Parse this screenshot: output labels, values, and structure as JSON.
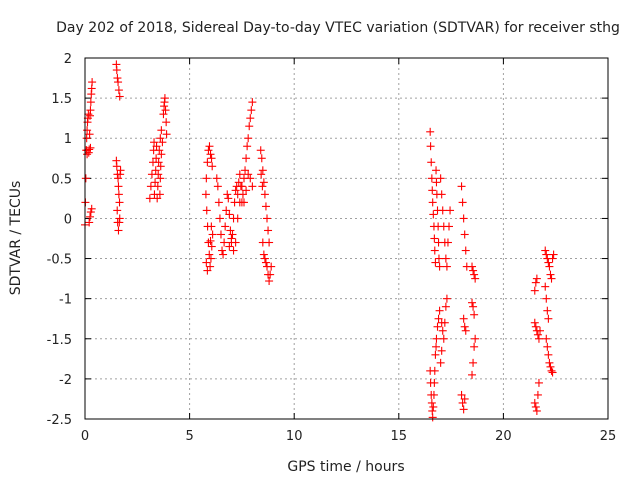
{
  "chart_data": {
    "type": "scatter",
    "title": "Day 202 of 2018, Sidereal Day-to-day VTEC variation (SDTVAR) for receiver sthg",
    "xlabel": "GPS time / hours",
    "ylabel": "SDTVAR / TECUs",
    "xlim": [
      0,
      25
    ],
    "ylim": [
      -2.5,
      2
    ],
    "xticks": [
      0,
      5,
      10,
      15,
      20,
      25
    ],
    "xtick_labels": [
      "0",
      "5",
      "10",
      "15",
      "20",
      "25"
    ],
    "yticks": [
      2,
      1.5,
      1,
      0.5,
      0,
      -0.5,
      -1,
      -1.5,
      -2,
      -2.5
    ],
    "ytick_labels": [
      "2",
      "1.5",
      "1",
      "0.5",
      "0",
      "-0.5",
      "-1",
      "-1.5",
      "-2",
      "-2.5"
    ],
    "grid": true,
    "marker": "+",
    "color": "#ff0000",
    "series": [
      {
        "name": "SDTVAR",
        "points": [
          [
            0.0,
            -0.08
          ],
          [
            0.02,
            0.2
          ],
          [
            0.04,
            0.5
          ],
          [
            0.06,
            0.85
          ],
          [
            0.08,
            1.0
          ],
          [
            0.1,
            1.1
          ],
          [
            0.12,
            1.2
          ],
          [
            0.14,
            1.25
          ],
          [
            0.16,
            1.3
          ],
          [
            0.18,
            0.82
          ],
          [
            0.2,
            0.86
          ],
          [
            0.22,
            1.05
          ],
          [
            0.24,
            1.28
          ],
          [
            0.26,
            1.35
          ],
          [
            0.28,
            1.45
          ],
          [
            0.3,
            1.55
          ],
          [
            0.32,
            1.62
          ],
          [
            0.34,
            1.7
          ],
          [
            0.08,
            0.85
          ],
          [
            0.1,
            0.8
          ],
          [
            0.26,
            0.88
          ],
          [
            0.2,
            -0.05
          ],
          [
            0.24,
            0.02
          ],
          [
            0.28,
            0.08
          ],
          [
            0.32,
            0.12
          ],
          [
            1.5,
            1.92
          ],
          [
            1.52,
            1.85
          ],
          [
            1.55,
            1.75
          ],
          [
            1.58,
            1.7
          ],
          [
            1.62,
            1.6
          ],
          [
            1.66,
            1.52
          ],
          [
            1.5,
            0.72
          ],
          [
            1.52,
            0.65
          ],
          [
            1.55,
            0.55
          ],
          [
            1.58,
            0.5
          ],
          [
            1.6,
            0.4
          ],
          [
            1.62,
            0.3
          ],
          [
            1.65,
            0.2
          ],
          [
            1.68,
            0.55
          ],
          [
            1.7,
            0.6
          ],
          [
            1.54,
            0.1
          ],
          [
            1.56,
            -0.05
          ],
          [
            1.6,
            -0.15
          ],
          [
            1.64,
            -0.05
          ],
          [
            1.66,
            0.0
          ],
          [
            3.1,
            0.25
          ],
          [
            3.15,
            0.4
          ],
          [
            3.2,
            0.55
          ],
          [
            3.25,
            0.7
          ],
          [
            3.28,
            0.85
          ],
          [
            3.3,
            0.95
          ],
          [
            3.32,
            0.3
          ],
          [
            3.35,
            0.45
          ],
          [
            3.38,
            0.6
          ],
          [
            3.4,
            0.75
          ],
          [
            3.42,
            0.9
          ],
          [
            3.45,
            0.25
          ],
          [
            3.48,
            0.4
          ],
          [
            3.5,
            0.55
          ],
          [
            3.52,
            0.7
          ],
          [
            3.55,
            0.85
          ],
          [
            3.58,
            0.3
          ],
          [
            3.6,
            0.5
          ],
          [
            3.62,
            0.65
          ],
          [
            3.65,
            0.8
          ],
          [
            3.7,
            0.95
          ],
          [
            3.75,
            1.3
          ],
          [
            3.78,
            1.4
          ],
          [
            3.8,
            1.45
          ],
          [
            3.82,
            1.5
          ],
          [
            3.85,
            1.35
          ],
          [
            3.88,
            1.2
          ],
          [
            3.9,
            1.05
          ],
          [
            3.6,
            1.0
          ],
          [
            3.65,
            1.1
          ],
          [
            5.8,
            0.5
          ],
          [
            5.85,
            0.7
          ],
          [
            5.9,
            0.85
          ],
          [
            5.95,
            0.9
          ],
          [
            6.0,
            0.8
          ],
          [
            6.05,
            0.75
          ],
          [
            6.08,
            0.65
          ],
          [
            5.78,
            0.3
          ],
          [
            5.82,
            0.1
          ],
          [
            5.86,
            -0.1
          ],
          [
            5.9,
            -0.3
          ],
          [
            5.94,
            -0.45
          ],
          [
            5.98,
            -0.6
          ],
          [
            6.02,
            -0.5
          ],
          [
            6.06,
            -0.35
          ],
          [
            6.1,
            -0.2
          ],
          [
            5.8,
            -0.55
          ],
          [
            5.85,
            -0.65
          ],
          [
            6.0,
            -0.28
          ],
          [
            6.04,
            -0.1
          ],
          [
            6.3,
            0.5
          ],
          [
            6.35,
            0.4
          ],
          [
            6.4,
            0.2
          ],
          [
            6.45,
            0.0
          ],
          [
            6.5,
            -0.2
          ],
          [
            6.55,
            -0.4
          ],
          [
            6.6,
            -0.45
          ],
          [
            6.65,
            -0.3
          ],
          [
            6.7,
            -0.1
          ],
          [
            6.75,
            0.1
          ],
          [
            6.8,
            0.3
          ],
          [
            6.85,
            0.25
          ],
          [
            6.9,
            0.05
          ],
          [
            6.95,
            -0.15
          ],
          [
            7.0,
            -0.3
          ],
          [
            7.05,
            -0.2
          ],
          [
            7.1,
            0.0
          ],
          [
            7.15,
            0.2
          ],
          [
            7.2,
            0.35
          ],
          [
            7.25,
            0.4
          ],
          [
            7.3,
            0.3
          ],
          [
            7.35,
            0.45
          ],
          [
            7.4,
            0.55
          ],
          [
            7.45,
            0.4
          ],
          [
            7.5,
            0.2
          ],
          [
            7.55,
            0.3
          ],
          [
            7.6,
            0.5
          ],
          [
            7.65,
            0.6
          ],
          [
            7.7,
            0.75
          ],
          [
            7.75,
            0.9
          ],
          [
            7.8,
            1.0
          ],
          [
            7.85,
            1.15
          ],
          [
            7.9,
            1.25
          ],
          [
            7.95,
            1.35
          ],
          [
            8.0,
            1.45
          ],
          [
            6.9,
            -0.35
          ],
          [
            7.0,
            -0.25
          ],
          [
            7.1,
            -0.4
          ],
          [
            7.2,
            -0.3
          ],
          [
            7.3,
            0.0
          ],
          [
            7.4,
            0.2
          ],
          [
            7.5,
            0.4
          ],
          [
            7.6,
            0.2
          ],
          [
            7.7,
            0.35
          ],
          [
            7.8,
            0.55
          ],
          [
            7.9,
            0.5
          ],
          [
            8.0,
            0.4
          ],
          [
            8.4,
            0.85
          ],
          [
            8.45,
            0.75
          ],
          [
            8.5,
            0.6
          ],
          [
            8.55,
            0.45
          ],
          [
            8.6,
            0.3
          ],
          [
            8.65,
            0.15
          ],
          [
            8.7,
            0.0
          ],
          [
            8.75,
            -0.15
          ],
          [
            8.8,
            -0.3
          ],
          [
            8.5,
            -0.3
          ],
          [
            8.55,
            -0.45
          ],
          [
            8.6,
            -0.5
          ],
          [
            8.65,
            -0.55
          ],
          [
            8.7,
            -0.6
          ],
          [
            8.75,
            -0.7
          ],
          [
            8.8,
            -0.78
          ],
          [
            8.85,
            -0.7
          ],
          [
            8.9,
            -0.6
          ],
          [
            8.42,
            0.55
          ],
          [
            8.48,
            0.4
          ],
          [
            16.5,
            1.08
          ],
          [
            16.52,
            0.9
          ],
          [
            16.55,
            0.7
          ],
          [
            16.58,
            0.5
          ],
          [
            16.6,
            0.35
          ],
          [
            16.62,
            0.2
          ],
          [
            16.65,
            0.05
          ],
          [
            16.68,
            -0.1
          ],
          [
            16.7,
            -0.25
          ],
          [
            16.72,
            -0.4
          ],
          [
            16.75,
            -0.55
          ],
          [
            16.78,
            0.6
          ],
          [
            16.8,
            0.45
          ],
          [
            16.82,
            0.3
          ],
          [
            16.85,
            0.1
          ],
          [
            16.88,
            -0.1
          ],
          [
            16.9,
            -0.3
          ],
          [
            16.92,
            -0.5
          ],
          [
            16.95,
            -0.6
          ],
          [
            16.5,
            -1.9
          ],
          [
            16.52,
            -2.05
          ],
          [
            16.55,
            -2.2
          ],
          [
            16.58,
            -2.3
          ],
          [
            16.6,
            -2.4
          ],
          [
            16.62,
            -2.48
          ],
          [
            16.65,
            -2.35
          ],
          [
            16.68,
            -2.2
          ],
          [
            16.7,
            -2.05
          ],
          [
            16.72,
            -1.9
          ],
          [
            16.75,
            -1.7
          ],
          [
            16.78,
            -1.6
          ],
          [
            16.8,
            -1.5
          ],
          [
            16.85,
            -1.35
          ],
          [
            16.9,
            -1.25
          ],
          [
            16.95,
            -1.15
          ],
          [
            17.0,
            0.5
          ],
          [
            17.05,
            0.3
          ],
          [
            17.1,
            0.1
          ],
          [
            17.15,
            -0.1
          ],
          [
            17.2,
            -0.3
          ],
          [
            17.25,
            -0.5
          ],
          [
            17.3,
            -0.6
          ],
          [
            17.35,
            -0.3
          ],
          [
            17.4,
            -0.1
          ],
          [
            17.45,
            0.1
          ],
          [
            17.05,
            -1.3
          ],
          [
            17.1,
            -1.4
          ],
          [
            17.15,
            -1.5
          ],
          [
            17.2,
            -1.3
          ],
          [
            17.25,
            -1.1
          ],
          [
            17.3,
            -1.0
          ],
          [
            17.0,
            -1.8
          ],
          [
            17.05,
            -1.65
          ],
          [
            18.0,
            0.4
          ],
          [
            18.05,
            0.2
          ],
          [
            18.1,
            0.0
          ],
          [
            18.15,
            -0.2
          ],
          [
            18.2,
            -0.4
          ],
          [
            18.25,
            -0.6
          ],
          [
            18.1,
            -1.25
          ],
          [
            18.15,
            -1.35
          ],
          [
            18.2,
            -1.4
          ],
          [
            18.0,
            -2.2
          ],
          [
            18.05,
            -2.3
          ],
          [
            18.1,
            -2.38
          ],
          [
            18.15,
            -2.25
          ],
          [
            18.5,
            -0.6
          ],
          [
            18.55,
            -0.65
          ],
          [
            18.6,
            -0.7
          ],
          [
            18.65,
            -0.75
          ],
          [
            18.5,
            -1.05
          ],
          [
            18.55,
            -1.1
          ],
          [
            18.6,
            -1.2
          ],
          [
            18.65,
            -1.5
          ],
          [
            18.6,
            -1.6
          ],
          [
            18.55,
            -1.8
          ],
          [
            18.5,
            -1.95
          ],
          [
            21.5,
            -0.9
          ],
          [
            21.55,
            -0.8
          ],
          [
            21.6,
            -0.75
          ],
          [
            21.5,
            -1.3
          ],
          [
            21.55,
            -1.35
          ],
          [
            21.6,
            -1.4
          ],
          [
            21.65,
            -1.45
          ],
          [
            21.7,
            -1.5
          ],
          [
            21.75,
            -1.4
          ],
          [
            21.5,
            -2.3
          ],
          [
            21.55,
            -2.35
          ],
          [
            21.6,
            -2.4
          ],
          [
            21.65,
            -2.2
          ],
          [
            21.7,
            -2.05
          ],
          [
            22.0,
            -0.4
          ],
          [
            22.05,
            -0.45
          ],
          [
            22.1,
            -0.5
          ],
          [
            22.15,
            -0.55
          ],
          [
            22.2,
            -0.6
          ],
          [
            22.25,
            -0.7
          ],
          [
            22.3,
            -0.75
          ],
          [
            22.35,
            -0.5
          ],
          [
            22.4,
            -0.45
          ],
          [
            22.0,
            -0.85
          ],
          [
            22.05,
            -1.0
          ],
          [
            22.1,
            -1.15
          ],
          [
            22.15,
            -1.25
          ],
          [
            22.05,
            -1.5
          ],
          [
            22.1,
            -1.6
          ],
          [
            22.15,
            -1.7
          ],
          [
            22.2,
            -1.8
          ],
          [
            22.25,
            -1.85
          ],
          [
            22.3,
            -1.9
          ],
          [
            22.35,
            -1.92
          ]
        ]
      }
    ]
  }
}
